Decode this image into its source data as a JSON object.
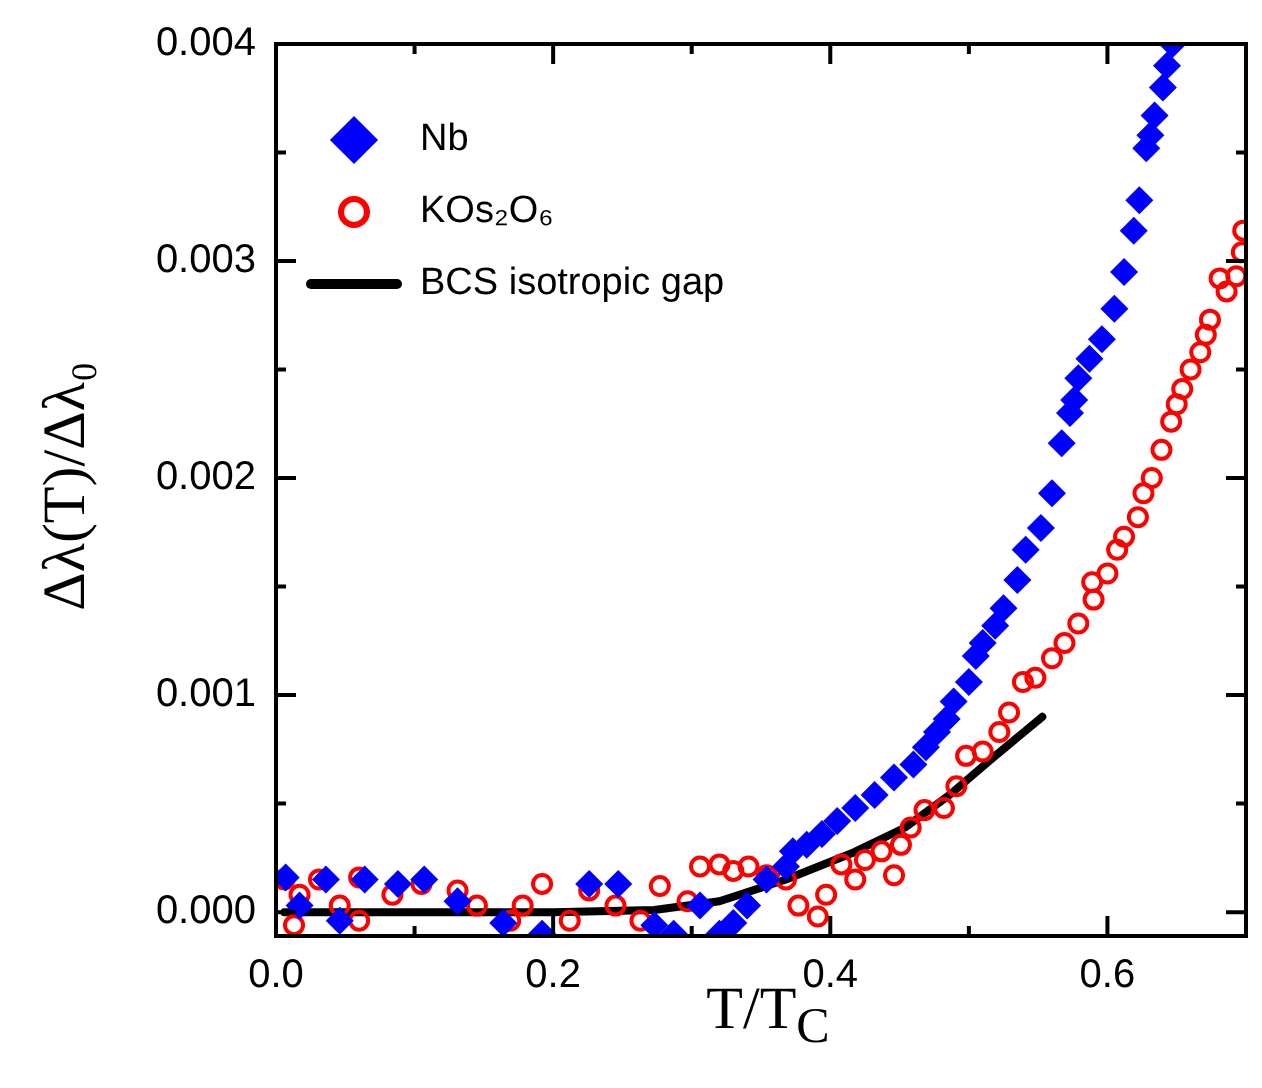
{
  "chart_data": {
    "type": "scatter",
    "xlabel": "T/T$_{C}$",
    "ylabel": "Δλ(T)/Δλ₀",
    "xlim": [
      0,
      0.7
    ],
    "ylim": [
      -0.00011,
      0.004
    ],
    "xticks": [
      {
        "value": 0,
        "label": "0.0"
      },
      {
        "value": 0.1,
        "label": null
      },
      {
        "value": 0.2,
        "label": "0.2"
      },
      {
        "value": 0.3,
        "label": null
      },
      {
        "value": 0.4,
        "label": "0.4"
      },
      {
        "value": 0.5,
        "label": null
      },
      {
        "value": 0.6,
        "label": "0.6"
      },
      {
        "value": 0.7,
        "label": null
      }
    ],
    "yticks": [
      {
        "value": 0,
        "label": "0.000"
      },
      {
        "value": 0.0005,
        "label": null
      },
      {
        "value": 0.001,
        "label": "0.001"
      },
      {
        "value": 0.0015,
        "label": null
      },
      {
        "value": 0.002,
        "label": "0.002"
      },
      {
        "value": 0.0025,
        "label": null
      },
      {
        "value": 0.003,
        "label": "0.003"
      },
      {
        "value": 0.0035,
        "label": null
      },
      {
        "value": 0.004,
        "label": "0.004"
      }
    ],
    "grid": false,
    "legend": "top left",
    "series": [
      {
        "name": "Nb",
        "marker": "diamond",
        "color": "#0000ff",
        "x": [
          0.007,
          0.017,
          0.036,
          0.046,
          0.064,
          0.088,
          0.107,
          0.131,
          0.164,
          0.192,
          0.226,
          0.247,
          0.273,
          0.287,
          0.306,
          0.32,
          0.33,
          0.34,
          0.354,
          0.368,
          0.373,
          0.383,
          0.394,
          0.405,
          0.418,
          0.432,
          0.446,
          0.46,
          0.469,
          0.477,
          0.484,
          0.489,
          0.5,
          0.505,
          0.51,
          0.519,
          0.525,
          0.535,
          0.541,
          0.552,
          0.56,
          0.567,
          0.573,
          0.576,
          0.579,
          0.587,
          0.596,
          0.605,
          0.612,
          0.619,
          0.623,
          0.628,
          0.631,
          0.634,
          0.64,
          0.643,
          0.647
        ],
        "values": [
          0.00016,
          3e-05,
          0.00015,
          -4e-05,
          0.00015,
          0.00013,
          0.00015,
          5e-05,
          -5e-05,
          -0.0001,
          0.00013,
          0.00013,
          -6e-05,
          -0.0001,
          3e-05,
          -0.0001,
          -5e-05,
          3e-05,
          0.00015,
          0.00021,
          0.00028,
          0.00031,
          0.00036,
          0.00042,
          0.00048,
          0.00054,
          0.00062,
          0.00068,
          0.00076,
          0.00083,
          0.00089,
          0.00097,
          0.00106,
          0.00118,
          0.00124,
          0.00132,
          0.0014,
          0.00153,
          0.00167,
          0.00177,
          0.00193,
          0.00216,
          0.0023,
          0.00236,
          0.00246,
          0.00255,
          0.00264,
          0.00278,
          0.00295,
          0.00314,
          0.00328,
          0.00352,
          0.00358,
          0.00367,
          0.0038,
          0.0039,
          0.004
        ]
      },
      {
        "name": "KOs₂O₆",
        "marker": "circle",
        "color": "#ff0000",
        "x": [
          0.006,
          0.013,
          0.017,
          0.031,
          0.046,
          0.06,
          0.06,
          0.084,
          0.105,
          0.131,
          0.145,
          0.169,
          0.178,
          0.192,
          0.212,
          0.226,
          0.245,
          0.263,
          0.277,
          0.297,
          0.306,
          0.32,
          0.33,
          0.341,
          0.354,
          0.368,
          0.377,
          0.391,
          0.397,
          0.408,
          0.418,
          0.425,
          0.437,
          0.446,
          0.451,
          0.458,
          0.468,
          0.482,
          0.491,
          0.498,
          0.51,
          0.522,
          0.529,
          0.539,
          0.548,
          0.56,
          0.569,
          0.579,
          0.59,
          0.589,
          0.6,
          0.607,
          0.612,
          0.622,
          0.626,
          0.632,
          0.639,
          0.646,
          0.65,
          0.654,
          0.66,
          0.667,
          0.671,
          0.674,
          0.681,
          0.686,
          0.693,
          0.697,
          0.698
        ],
        "values": [
          0.00015,
          -6e-05,
          8e-05,
          0.00015,
          3e-05,
          0.00016,
          -4e-05,
          8e-05,
          0.00013,
          0.0001,
          3e-05,
          -4e-05,
          3e-05,
          0.00013,
          -4e-05,
          0.0001,
          3e-05,
          -4e-05,
          0.00012,
          5e-05,
          0.00021,
          0.00022,
          0.00019,
          0.00021,
          0.00017,
          0.00015,
          3e-05,
          -2e-05,
          8e-05,
          0.00022,
          0.00015,
          0.00024,
          0.00028,
          0.00017,
          0.00031,
          0.00039,
          0.00047,
          0.00048,
          0.00058,
          0.00072,
          0.00074,
          0.00083,
          0.00092,
          0.00106,
          0.00108,
          0.00117,
          0.00124,
          0.00133,
          0.00144,
          0.00152,
          0.00156,
          0.00167,
          0.00173,
          0.00182,
          0.00193,
          0.002,
          0.00213,
          0.00226,
          0.00234,
          0.00241,
          0.0025,
          0.00258,
          0.00266,
          0.00273,
          0.00292,
          0.00286,
          0.00293,
          0.00304,
          0.00314
        ]
      },
      {
        "name": "BCS isotropic gap",
        "type": "line",
        "marker": "none",
        "color": "#000000",
        "x": [
          0.006,
          0.1,
          0.2,
          0.273,
          0.32,
          0.368,
          0.415,
          0.454,
          0.486,
          0.519,
          0.553
        ],
        "values": [
          0,
          0,
          0,
          1e-05,
          5e-05,
          0.00015,
          0.00027,
          0.00039,
          0.00054,
          0.00072,
          0.0009
        ]
      }
    ]
  }
}
